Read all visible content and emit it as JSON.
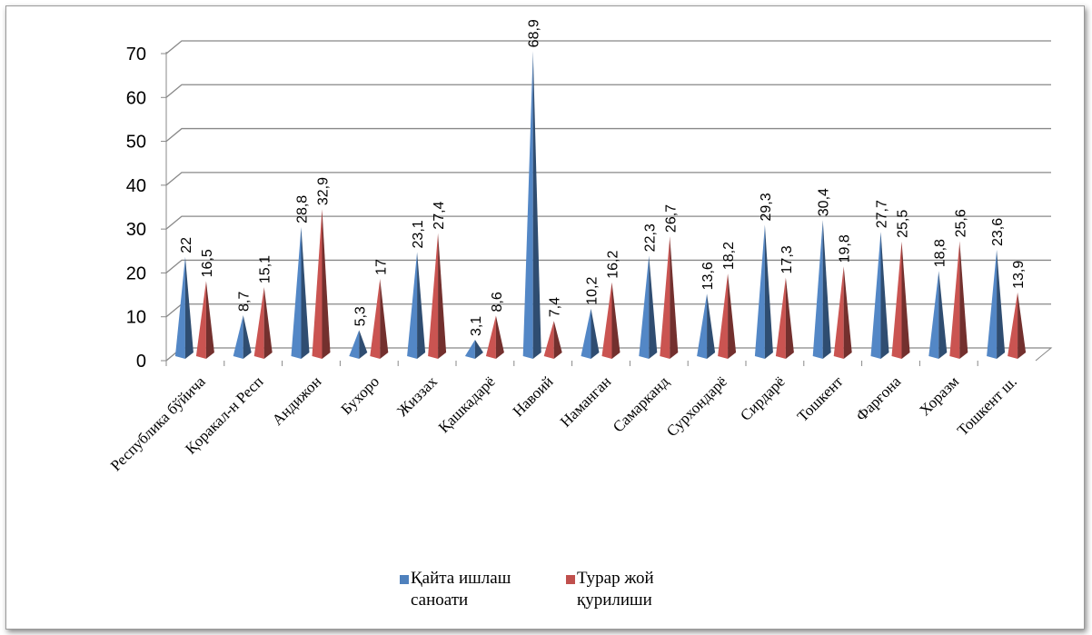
{
  "chart_data": {
    "type": "bar3d_cone",
    "categories": [
      "Республика бўйича",
      "Қоракал-н Респ",
      "Андижон",
      "Бухоро",
      "Жиззах",
      "Қашкадарё",
      "Навоий",
      "Наманган",
      "Самарканд",
      "Сурхондарё",
      "Сирдарё",
      "Тошкент",
      "Фарғона",
      "Хоразм",
      "Тошкент ш."
    ],
    "series": [
      {
        "name": "Қайта ишлаш саноати",
        "color": "#4f81bd",
        "values": [
          22,
          8.7,
          28.8,
          5.3,
          23.1,
          3.1,
          68.9,
          10.2,
          22.3,
          13.6,
          29.3,
          30.4,
          27.7,
          18.8,
          23.6
        ],
        "value_labels": [
          "22",
          "8,7",
          "28,8",
          "5,3",
          "23,1",
          "3,1",
          "68,9",
          "10,2",
          "22,3",
          "13,6",
          "29,3",
          "30,4",
          "27,7",
          "18,8",
          "23,6"
        ]
      },
      {
        "name": "Турар жой қурилиши",
        "color": "#c0504d",
        "values": [
          16.5,
          15.1,
          32.9,
          17,
          27.4,
          8.6,
          7.4,
          16.2,
          26.7,
          18.2,
          17.3,
          19.8,
          25.5,
          25.6,
          13.9
        ],
        "value_labels": [
          "16,5",
          "15,1",
          "32,9",
          "17",
          "27,4",
          "8,6",
          "7,4",
          "16,2",
          "26,7",
          "18,2",
          "17,3",
          "19,8",
          "25,5",
          "25,6",
          "13,9"
        ]
      }
    ],
    "ylim": [
      0,
      70
    ],
    "yticks": [
      0,
      10,
      20,
      30,
      40,
      50,
      60,
      70
    ],
    "grid": true,
    "legend": "bottom"
  }
}
